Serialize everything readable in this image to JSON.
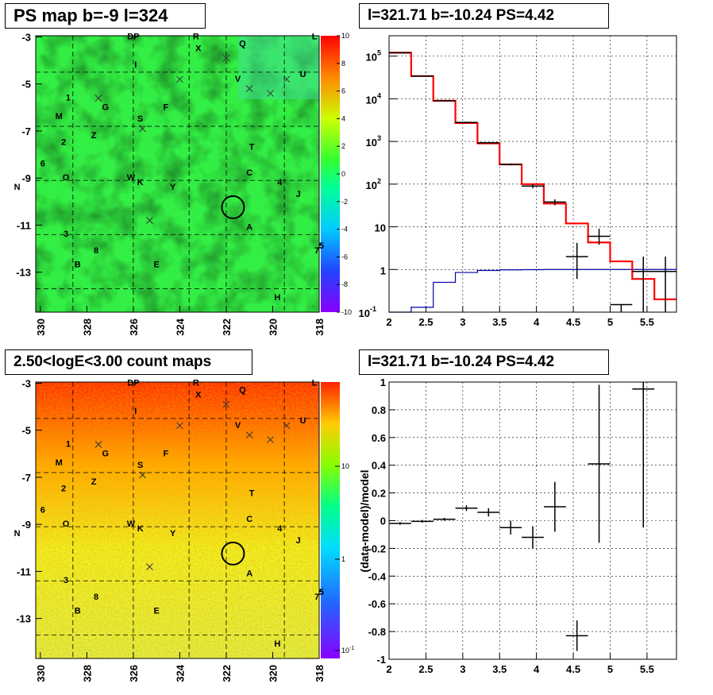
{
  "titles": {
    "ps_map": "PS map b=-9 l=324",
    "spectrum": "l=321.71 b=-10.24 PS=4.42",
    "count_map": "2.50<logE<3.00 count maps",
    "residual": "l=321.71 b=-10.24 PS=4.42"
  },
  "colors": {
    "data": "#000000",
    "model": "#ff0000",
    "background": "#0000aa",
    "grid": "#000000"
  },
  "sky_maps": {
    "x_ticks": [
      "330",
      "328",
      "326",
      "324",
      "322",
      "320",
      "318"
    ],
    "y_ticks": [
      "-3",
      "-5",
      "-7",
      "-9",
      "-11",
      "-13"
    ],
    "source_labels": [
      {
        "t": "DP",
        "l": 326.0,
        "b": -3.1
      },
      {
        "t": "R",
        "l": 323.3,
        "b": -3.1
      },
      {
        "t": "X",
        "l": 323.2,
        "b": -3.6
      },
      {
        "t": "Q",
        "l": 321.3,
        "b": -3.4
      },
      {
        "t": "L",
        "l": 318.2,
        "b": -3.1
      },
      {
        "t": "I",
        "l": 325.9,
        "b": -4.3
      },
      {
        "t": "U",
        "l": 318.7,
        "b": -4.7
      },
      {
        "t": "V",
        "l": 321.5,
        "b": -4.9
      },
      {
        "t": "1",
        "l": 328.8,
        "b": -5.7
      },
      {
        "t": "G",
        "l": 327.2,
        "b": -6.1
      },
      {
        "t": "F",
        "l": 324.6,
        "b": -6.1
      },
      {
        "t": "M",
        "l": 329.2,
        "b": -6.5
      },
      {
        "t": "S",
        "l": 325.7,
        "b": -6.6
      },
      {
        "t": "Z",
        "l": 327.7,
        "b": -7.3
      },
      {
        "t": "2",
        "l": 329.0,
        "b": -7.6
      },
      {
        "t": "T",
        "l": 320.9,
        "b": -7.8
      },
      {
        "t": "6",
        "l": 329.9,
        "b": -8.5
      },
      {
        "t": "C",
        "l": 321.0,
        "b": -8.9
      },
      {
        "t": "O",
        "l": 328.9,
        "b": -9.1
      },
      {
        "t": "W",
        "l": 326.1,
        "b": -9.1
      },
      {
        "t": "K",
        "l": 325.7,
        "b": -9.3
      },
      {
        "t": "4",
        "l": 319.7,
        "b": -9.3
      },
      {
        "t": "N",
        "l": 331.0,
        "b": -9.5
      },
      {
        "t": "Y",
        "l": 324.3,
        "b": -9.5
      },
      {
        "t": "J",
        "l": 318.9,
        "b": -9.8
      },
      {
        "t": "A",
        "l": 321.0,
        "b": -11.2
      },
      {
        "t": "3",
        "l": 328.9,
        "b": -11.5
      },
      {
        "t": "8",
        "l": 327.6,
        "b": -12.2
      },
      {
        "t": "5",
        "l": 317.9,
        "b": -12.0
      },
      {
        "t": "7",
        "l": 318.1,
        "b": -12.2
      },
      {
        "t": "B",
        "l": 328.4,
        "b": -12.8
      },
      {
        "t": "E",
        "l": 325.0,
        "b": -12.8
      },
      {
        "t": "H",
        "l": 319.8,
        "b": -14.2
      }
    ],
    "crosses": [
      {
        "l": 327.5,
        "b": -5.6
      },
      {
        "l": 324.0,
        "b": -4.8
      },
      {
        "l": 322.0,
        "b": -3.9
      },
      {
        "l": 321.0,
        "b": -5.2
      },
      {
        "l": 320.1,
        "b": -5.4
      },
      {
        "l": 319.4,
        "b": -4.8
      },
      {
        "l": 325.6,
        "b": -6.9
      },
      {
        "l": 325.3,
        "b": -10.8
      }
    ],
    "circle": {
      "l": 321.71,
      "b": -10.24
    },
    "ps_palette": {
      "labels": [
        "10",
        "8",
        "6",
        "4",
        "2",
        "0",
        "-2",
        "-4",
        "-6",
        "-8",
        "-10"
      ]
    },
    "count_palette": {
      "labels": [
        "10",
        "1",
        "10^-1"
      ]
    }
  },
  "chart_data": [
    {
      "type": "line",
      "title": "l=321.71 b=-10.24 PS=4.42",
      "xlim": [
        2,
        5.9
      ],
      "ylim": [
        0.1,
        300000
      ],
      "y_log": true,
      "x_ticks": [
        "2",
        "2.5",
        "3",
        "3.5",
        "4",
        "4.5",
        "5",
        "5.5"
      ],
      "y_ticks": [
        {
          "v": 100000,
          "t": "10",
          "e": "5"
        },
        {
          "v": 10000,
          "t": "10",
          "e": "4"
        },
        {
          "v": 1000,
          "t": "10",
          "e": "3"
        },
        {
          "v": 100,
          "t": "10",
          "e": "2"
        },
        {
          "v": 10,
          "t": "10"
        },
        {
          "v": 1,
          "t": "1"
        },
        {
          "v": 0.1,
          "t": "10",
          "e": "-1"
        }
      ],
      "bin_edges": [
        2.0,
        2.3,
        2.6,
        2.9,
        3.2,
        3.5,
        3.8,
        4.1,
        4.4,
        4.7,
        5.0,
        5.3,
        5.6,
        5.9
      ],
      "model": [
        120000,
        34000,
        9000,
        2700,
        900,
        290,
        100,
        35,
        12,
        4.3,
        1.55,
        0.6,
        0.2
      ],
      "background": [
        0.1,
        0.13,
        0.5,
        0.85,
        0.95,
        0.98,
        0.99,
        1.0,
        1.0,
        1.0,
        1.0,
        1.0,
        1.0
      ],
      "data_points": [
        {
          "x": 2.15,
          "y": 120000,
          "lo": 118000,
          "hi": 122000
        },
        {
          "x": 2.45,
          "y": 34000,
          "lo": 33500,
          "hi": 34500
        },
        {
          "x": 2.75,
          "y": 9000,
          "lo": 8800,
          "hi": 9200
        },
        {
          "x": 3.05,
          "y": 2800,
          "lo": 2700,
          "hi": 2900
        },
        {
          "x": 3.35,
          "y": 930,
          "lo": 900,
          "hi": 960
        },
        {
          "x": 3.65,
          "y": 290,
          "lo": 275,
          "hi": 305
        },
        {
          "x": 3.95,
          "y": 90,
          "lo": 80,
          "hi": 100
        },
        {
          "x": 4.25,
          "y": 38,
          "lo": 32,
          "hi": 44
        },
        {
          "x": 4.55,
          "y": 2,
          "lo": 0.6,
          "hi": 4.2
        },
        {
          "x": 4.85,
          "y": 6,
          "lo": 3.8,
          "hi": 9
        },
        {
          "x": 5.15,
          "y": 0.15,
          "lo": 0.1,
          "hi": 0.15
        },
        {
          "x": 5.45,
          "y": 0.9,
          "lo": 0.1,
          "hi": 2
        },
        {
          "x": 5.75,
          "y": 0.9,
          "lo": 0.1,
          "hi": 2
        }
      ]
    },
    {
      "type": "scatter",
      "title": "l=321.71 b=-10.24 PS=4.42",
      "ylabel": "(data-model)/model",
      "xlim": [
        2,
        5.9
      ],
      "ylim": [
        -1,
        1
      ],
      "x_ticks": [
        "2",
        "2.5",
        "3",
        "3.5",
        "4",
        "4.5",
        "5",
        "5.5"
      ],
      "y_ticks": [
        "1",
        "0.8",
        "0.6",
        "0.4",
        "0.2",
        "0",
        "-0.2",
        "-0.4",
        "-0.6",
        "-0.8",
        "-1"
      ],
      "points": [
        {
          "x": 2.15,
          "y": -0.02,
          "err": 0.01
        },
        {
          "x": 2.45,
          "y": -0.005,
          "err": 0.01
        },
        {
          "x": 2.75,
          "y": 0.01,
          "err": 0.01
        },
        {
          "x": 3.05,
          "y": 0.09,
          "err": 0.02
        },
        {
          "x": 3.35,
          "y": 0.06,
          "err": 0.03
        },
        {
          "x": 3.65,
          "y": -0.05,
          "err": 0.05
        },
        {
          "x": 3.95,
          "y": -0.12,
          "err": 0.08
        },
        {
          "x": 4.25,
          "y": 0.1,
          "err": 0.18
        },
        {
          "x": 4.55,
          "y": -0.83,
          "err": 0.11
        },
        {
          "x": 4.85,
          "y": 0.41,
          "err": 0.57
        },
        {
          "x": 5.45,
          "y": 0.95,
          "err": 1.0
        }
      ]
    }
  ]
}
